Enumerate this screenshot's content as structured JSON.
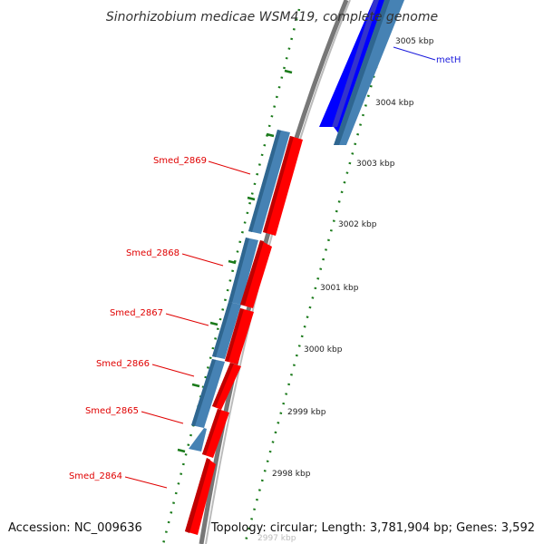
{
  "title": "Sinorhizobium medicae WSM419, complete genome",
  "accession": "Accession: NC_009636",
  "topology": "Topology: circular; Length: 3,781,904 bp; Genes: 3,592",
  "ticks": [
    "3005 kbp",
    "3004 kbp",
    "3003 kbp",
    "3002 kbp",
    "3001 kbp",
    "3000 kbp",
    "2999 kbp",
    "2998 kbp",
    "2997 kbp"
  ],
  "genes": [
    "Smed_2869",
    "Smed_2868",
    "Smed_2867",
    "Smed_2866",
    "Smed_2865",
    "Smed_2864"
  ],
  "feature_label": "metH",
  "colors": {
    "gene_red": "#ff0000",
    "gene_blue": "#4682b4",
    "highlight_blue": "#0000ff",
    "backbone": "#888888",
    "tick_green": "#1a7a1a",
    "label_red": "#e00000",
    "label_blue": "#1a1adc"
  }
}
